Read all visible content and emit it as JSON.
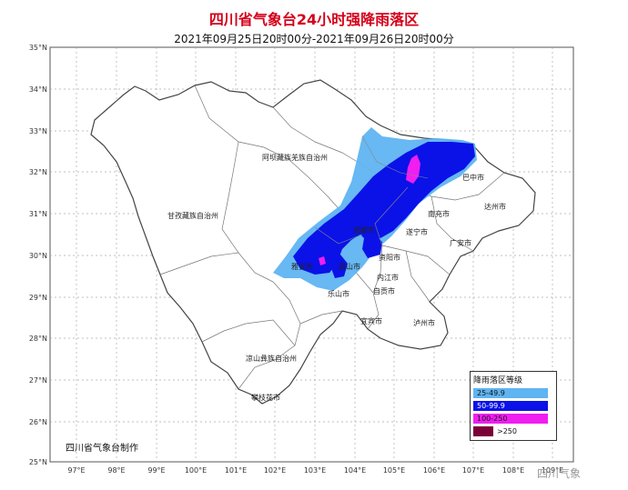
{
  "title": "四川省气象台24小时强降雨落区",
  "subtitle": "2021年09月25日20时00分-2021年09月26日20时00分",
  "map": {
    "lat_labels": [
      "35°N",
      "34°N",
      "33°N",
      "32°N",
      "31°N",
      "30°N",
      "29°N",
      "28°N",
      "27°N",
      "26°N",
      "25°N"
    ],
    "lon_labels": [
      "97°E",
      "98°E",
      "99°E",
      "100°E",
      "101°E",
      "102°E",
      "103°E",
      "104°E",
      "105°E",
      "106°E",
      "107°E",
      "108°E",
      "109°E"
    ],
    "region_labels": [
      "阿坝藏族羌族自治州",
      "甘孜藏族自治州",
      "凉山彝族自治州"
    ],
    "city_labels": [
      "巴中市",
      "达州市",
      "南充市",
      "遂宁市",
      "广安市",
      "成都市",
      "眉山市",
      "资阳市",
      "内江市",
      "乐山市",
      "自贡市",
      "宜宾市",
      "泸州市",
      "攀枝花市",
      "雅安市"
    ]
  },
  "legend": {
    "title": "降雨落区等级",
    "items": [
      {
        "label": "25-49.9",
        "color": "#5fb4f2"
      },
      {
        "label": "50-99.9",
        "color": "#0a12e8"
      },
      {
        "label": "100-250",
        "color": "#f01ef0"
      },
      {
        "label": ">250",
        "color": "#7a0037"
      }
    ]
  },
  "credit": "四川省气象台制作",
  "watermark": "四川气象"
}
